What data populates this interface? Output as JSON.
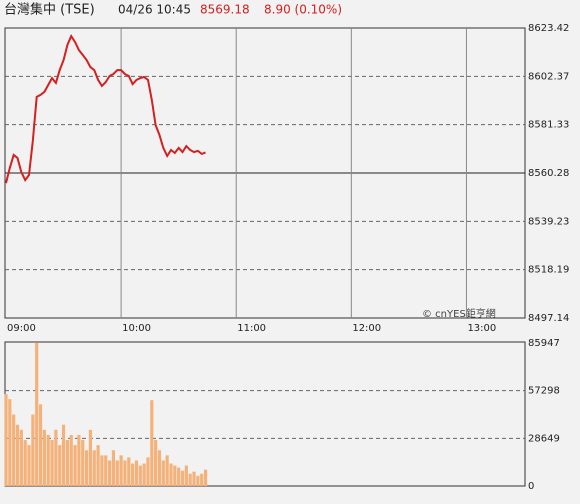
{
  "header": {
    "title": "台灣集中 (TSE)",
    "time": "04/26 10:45",
    "price": "8569.18",
    "change": "8.90 (0.10%)"
  },
  "watermark": "© cnYES鉅亨網",
  "chart_data": [
    {
      "type": "line",
      "color": "#d42020",
      "x": [
        0,
        2,
        4,
        6,
        8,
        10,
        12,
        14,
        16,
        18,
        20,
        22,
        24,
        26,
        28,
        30,
        32,
        34,
        36,
        38,
        40,
        42,
        44,
        46,
        48,
        50,
        52,
        54,
        56,
        58,
        60,
        62,
        64,
        66,
        68,
        70,
        72,
        74,
        76,
        78,
        80,
        82,
        84,
        86,
        88,
        90,
        92,
        94,
        96,
        98,
        100,
        102,
        104
      ],
      "values": [
        8555.9,
        8562.5,
        8568.1,
        8566.8,
        8560.7,
        8557.2,
        8559.4,
        8574.6,
        8593.4,
        8594.3,
        8595.6,
        8598.6,
        8601.6,
        8599.5,
        8605.1,
        8609.5,
        8616.0,
        8619.9,
        8617.3,
        8613.8,
        8611.7,
        8609.5,
        8606.4,
        8605.1,
        8600.8,
        8598.2,
        8599.9,
        8602.5,
        8603.4,
        8605.1,
        8605.1,
        8603.4,
        8602.5,
        8599.0,
        8600.8,
        8601.6,
        8602.1,
        8600.8,
        8592.1,
        8581.2,
        8576.8,
        8571.2,
        8567.7,
        8570.3,
        8569.0,
        8571.2,
        8569.4,
        8572.0,
        8570.3,
        8569.4,
        8569.9,
        8568.6,
        8569.2
      ],
      "xlim": [
        0,
        270
      ],
      "xticks": [
        {
          "value": 0,
          "label": "09:00"
        },
        {
          "value": 60,
          "label": "10:00"
        },
        {
          "value": 120,
          "label": "11:00"
        },
        {
          "value": 180,
          "label": "12:00"
        },
        {
          "value": 240,
          "label": "13:00"
        }
      ],
      "ylim": [
        8497.14,
        8623.42
      ],
      "yticks": [
        8497.14,
        8518.19,
        8539.23,
        8560.28,
        8581.33,
        8602.37,
        8623.42
      ],
      "baseline": 8560.28,
      "grid": true
    },
    {
      "type": "bar",
      "color": "#f4b27a",
      "x": [
        0,
        2,
        4,
        6,
        8,
        10,
        12,
        14,
        16,
        18,
        20,
        22,
        24,
        26,
        28,
        30,
        32,
        34,
        36,
        38,
        40,
        42,
        44,
        46,
        48,
        50,
        52,
        54,
        56,
        58,
        60,
        62,
        64,
        66,
        68,
        70,
        72,
        74,
        76,
        78,
        80,
        82,
        84,
        86,
        88,
        90,
        92,
        94,
        96,
        98,
        100,
        102,
        104
      ],
      "values": [
        55260,
        52190,
        42980,
        36840,
        33770,
        27630,
        24560,
        42980,
        85947,
        49120,
        33770,
        30700,
        27630,
        33770,
        24560,
        36840,
        27630,
        30700,
        24560,
        30700,
        27630,
        21490,
        33770,
        21490,
        24560,
        18420,
        18420,
        15350,
        21490,
        15350,
        18420,
        15350,
        17190,
        13510,
        15350,
        12280,
        13510,
        17190,
        51580,
        27630,
        21490,
        15350,
        18420,
        13510,
        12280,
        11050,
        9210,
        12280,
        7370,
        8600,
        6140,
        7370,
        9820
      ],
      "xlim": [
        0,
        270
      ],
      "ylim": [
        0,
        85947
      ],
      "yticks": [
        0,
        28649,
        57298,
        85947
      ],
      "grid": true
    }
  ]
}
